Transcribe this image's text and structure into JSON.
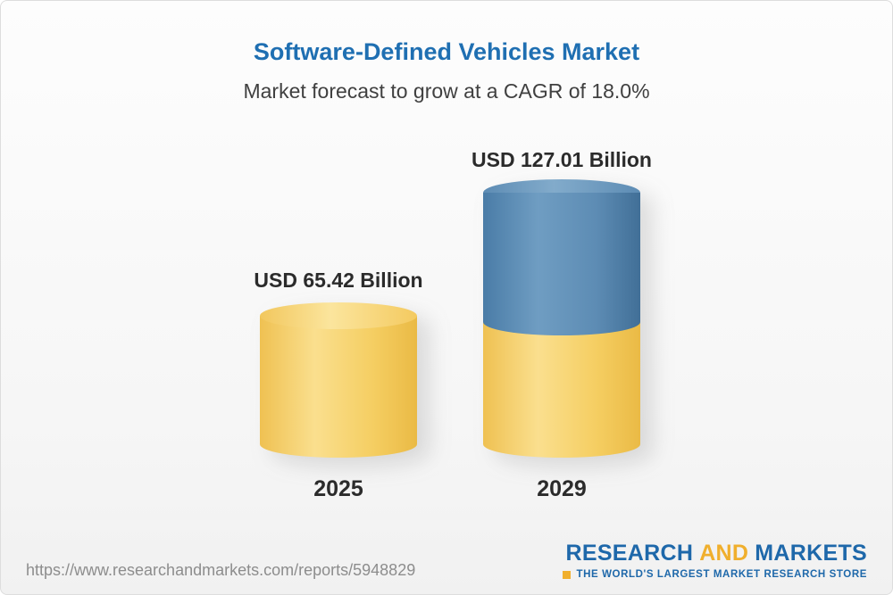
{
  "header": {
    "title": "Software-Defined Vehicles Market",
    "subtitle": "Market forecast to grow at a CAGR of 18.0%"
  },
  "chart_data": {
    "type": "bar",
    "categories": [
      "2025",
      "2029"
    ],
    "values": [
      65.42,
      127.01
    ],
    "value_labels": [
      "USD 65.42 Billion",
      "USD 127.01 Billion"
    ],
    "unit": "USD Billion",
    "title": "Software-Defined Vehicles Market",
    "subtitle": "Market forecast to grow at a CAGR of 18.0%",
    "cagr": "18.0%",
    "legend_position": "none",
    "grid": false,
    "colors": {
      "bar_2025": "#f5ce62",
      "bar_2029_base": "#f5ce62",
      "bar_2029_top": "#5d8cb4",
      "title_blue": "#1f6fb2",
      "logo_blue": "#1e68aa",
      "logo_gold": "#f0af2d"
    }
  },
  "footer": {
    "url": "https://www.researchandmarkets.com/reports/5948829",
    "logo": {
      "research": "RESEARCH",
      "and": "AND",
      "markets": "MARKETS",
      "tagline": "THE WORLD'S LARGEST MARKET RESEARCH STORE"
    }
  }
}
